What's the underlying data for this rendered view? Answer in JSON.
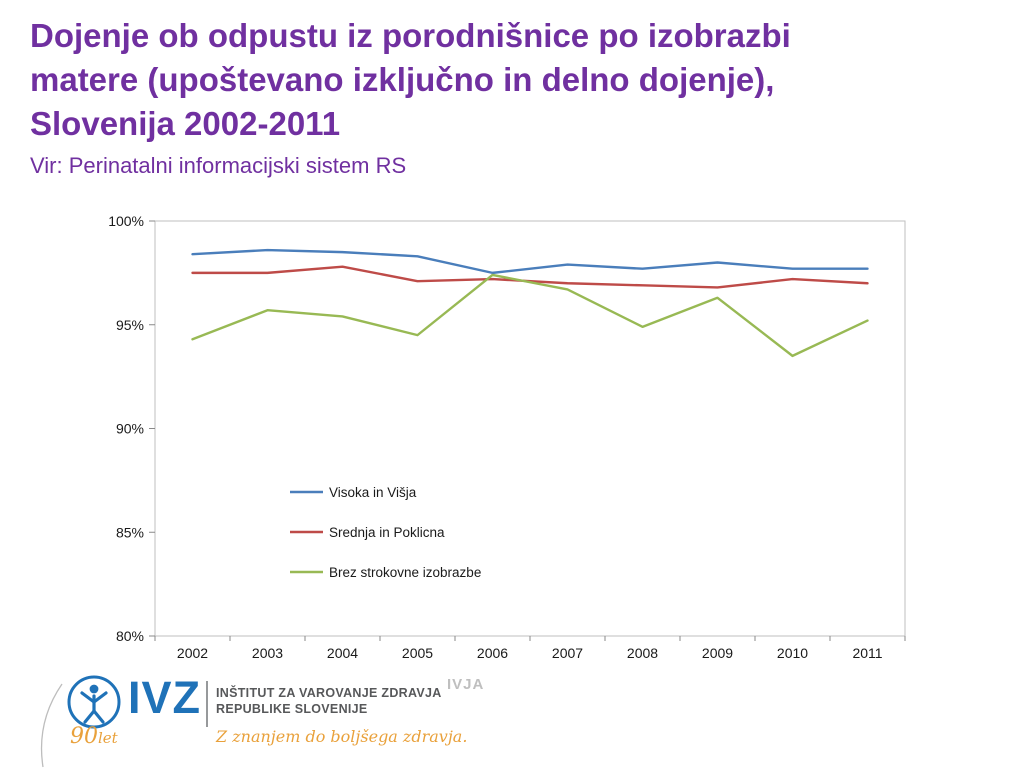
{
  "slide": {
    "title_lines": [
      "Dojenje ob odpustu iz porodnišnice po izobrazbi",
      "matere (upoštevano izključno in delno dojenje),",
      "Slovenija 2002-2011"
    ],
    "subtitle": "Vir: Perinatalni informacijski sistem RS",
    "title_color": "#7030A0"
  },
  "chart_data": {
    "type": "line",
    "categories": [
      "2002",
      "2003",
      "2004",
      "2005",
      "2006",
      "2007",
      "2008",
      "2009",
      "2010",
      "2011"
    ],
    "series": [
      {
        "name": "Visoka in Višja",
        "color": "#4A7EBB",
        "values": [
          98.4,
          98.6,
          98.5,
          98.3,
          97.5,
          97.9,
          97.7,
          98.0,
          97.7,
          97.7
        ]
      },
      {
        "name": "Srednja in Poklicna",
        "color": "#BE4B48",
        "values": [
          97.5,
          97.5,
          97.8,
          97.1,
          97.2,
          97.0,
          96.9,
          96.8,
          97.2,
          97.0
        ]
      },
      {
        "name": "Brez strokovne izobrazbe",
        "color": "#98B954",
        "values": [
          94.3,
          95.7,
          95.4,
          94.5,
          97.4,
          96.7,
          94.9,
          96.3,
          93.5,
          95.2
        ]
      }
    ],
    "title": "",
    "xlabel": "",
    "ylabel": "",
    "ylim": [
      80,
      100
    ],
    "yticks": [
      100,
      95,
      90,
      85,
      80
    ],
    "ytick_suffix": "%",
    "grid": false,
    "legend_position": "inside-left-lower"
  },
  "footer": {
    "watermark": "IVJA",
    "logo": {
      "acronym": "IVZ",
      "anniversary_number": "90",
      "anniversary_suffix": "let",
      "org_line1": "INŠTITUT ZA VAROVANJE ZDRAVJA",
      "org_line2": "REPUBLIKE SLOVENIJE",
      "slogan": "Z znanjem do boljšega zdravja.",
      "brand_blue": "#1F72B8",
      "brand_orange": "#E9A13B"
    }
  }
}
